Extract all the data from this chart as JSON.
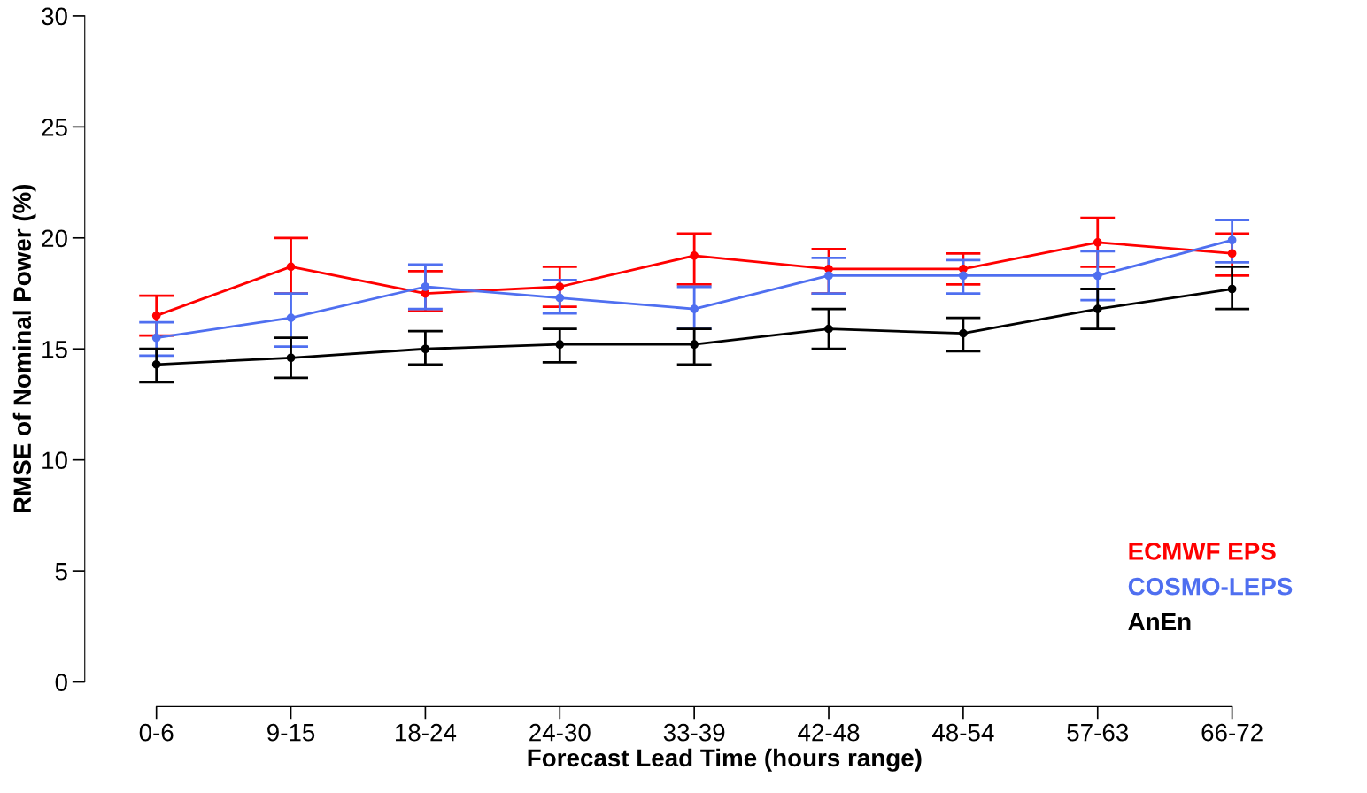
{
  "chart_data": {
    "type": "line",
    "xlabel": "Forecast Lead Time (hours range)",
    "ylabel": "RMSE of Nominal Power (%)",
    "categories": [
      "0-6",
      "9-15",
      "18-24",
      "24-30",
      "33-39",
      "42-48",
      "48-54",
      "57-63",
      "66-72"
    ],
    "ylim": [
      0,
      30
    ],
    "yticks": [
      0,
      5,
      10,
      15,
      20,
      25,
      30
    ],
    "grid": false,
    "legend": "bottom right",
    "marker": "circle",
    "line_style": "solid",
    "series": [
      {
        "name": "ECMWF EPS",
        "color": "#ff0000",
        "values": [
          16.5,
          18.7,
          17.5,
          17.8,
          19.2,
          18.6,
          18.6,
          19.8,
          19.3
        ],
        "errors": [
          [
            15.6,
            17.4
          ],
          [
            17.5,
            20.0
          ],
          [
            16.7,
            18.5
          ],
          [
            16.9,
            18.7
          ],
          [
            17.9,
            20.2
          ],
          [
            17.5,
            19.5
          ],
          [
            17.9,
            19.3
          ],
          [
            18.7,
            20.9
          ],
          [
            18.3,
            20.2
          ]
        ]
      },
      {
        "name": "COSMO-LEPS",
        "color": "#4f6ff0",
        "values": [
          15.5,
          16.4,
          17.8,
          17.3,
          16.8,
          18.3,
          18.3,
          18.3,
          19.9
        ],
        "errors": [
          [
            14.7,
            16.2
          ],
          [
            15.1,
            17.5
          ],
          [
            16.8,
            18.8
          ],
          [
            16.6,
            18.1
          ],
          [
            15.9,
            17.8
          ],
          [
            17.5,
            19.1
          ],
          [
            17.5,
            19.0
          ],
          [
            17.2,
            19.4
          ],
          [
            18.9,
            20.8
          ]
        ]
      },
      {
        "name": "AnEn",
        "color": "#000000",
        "values": [
          14.3,
          14.6,
          15.0,
          15.2,
          15.2,
          15.9,
          15.7,
          16.8,
          17.7
        ],
        "errors": [
          [
            13.5,
            15.0
          ],
          [
            13.7,
            15.5
          ],
          [
            14.3,
            15.8
          ],
          [
            14.4,
            15.9
          ],
          [
            14.3,
            15.9
          ],
          [
            15.0,
            16.8
          ],
          [
            14.9,
            16.4
          ],
          [
            15.9,
            17.7
          ],
          [
            16.8,
            18.7
          ]
        ]
      }
    ]
  }
}
